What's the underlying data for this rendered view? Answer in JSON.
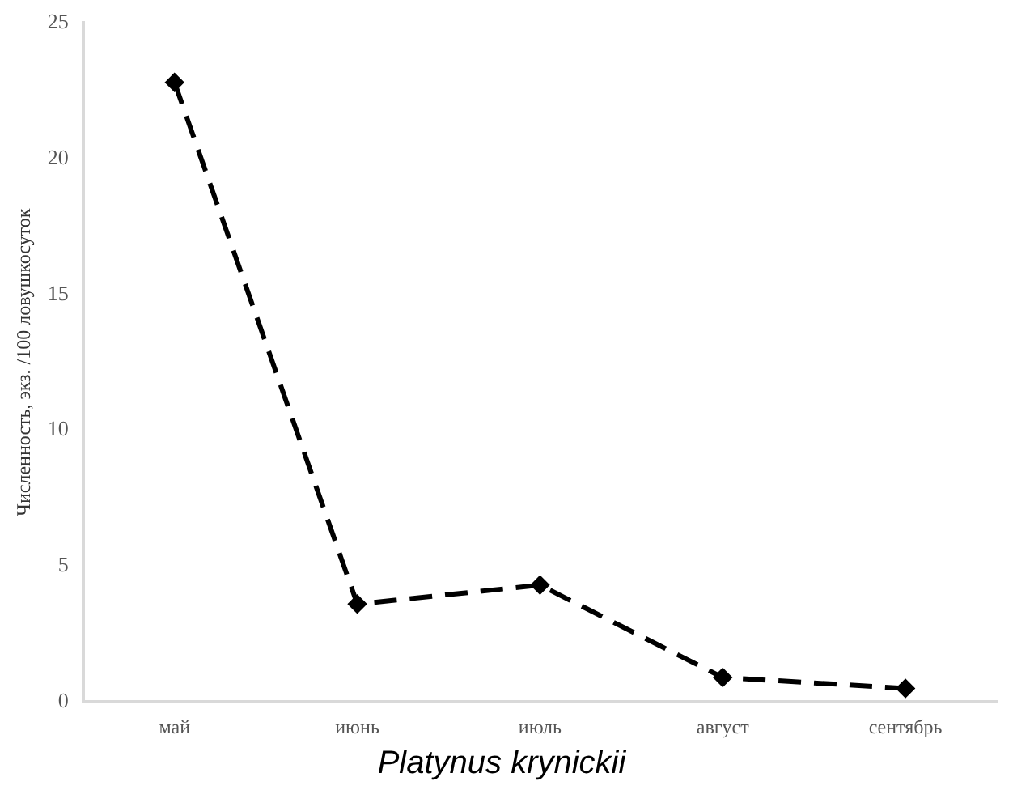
{
  "chart_data": {
    "type": "line",
    "title": "Platynus krynickii",
    "ylabel": "Численность, экз. /100 ловушкосуток",
    "categories": [
      "май",
      "июнь",
      "июль",
      "август",
      "сентябрь"
    ],
    "series": [
      {
        "color": "#000000",
        "values": [
          22.8,
          3.6,
          4.3,
          0.9,
          0.5
        ]
      }
    ],
    "ylim": [
      0,
      25
    ],
    "yticks": [
      0,
      5,
      10,
      15,
      20,
      25
    ],
    "grid": false,
    "legend": false,
    "marker": "diamond",
    "line_style": "dashed"
  }
}
